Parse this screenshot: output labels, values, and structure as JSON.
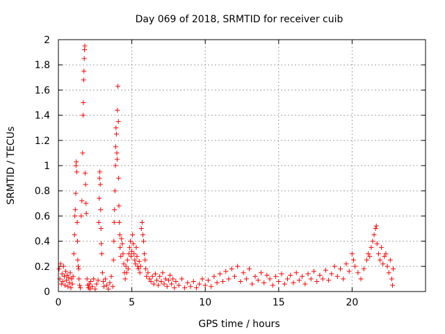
{
  "chart_data": {
    "type": "scatter",
    "title": "Day 069 of 2018, SRMTID for receiver cuib",
    "xlabel": "GPS time / hours",
    "ylabel": "SRMTID / TECUs",
    "xlim": [
      0,
      25
    ],
    "ylim": [
      0,
      2
    ],
    "grid": true,
    "marker": "plus",
    "marker_color": "#ff0000",
    "xticks": [
      0,
      5,
      10,
      15,
      20
    ],
    "xtick_labels": [
      "0",
      "5",
      "10",
      "15",
      "20"
    ],
    "yticks": [
      0,
      0.2,
      0.4,
      0.6,
      0.8,
      1,
      1.2,
      1.4,
      1.6,
      1.8,
      2
    ],
    "ytick_labels": [
      "0",
      "0.2",
      "0.4",
      "0.6",
      "0.8",
      "1",
      "1.2",
      "1.4",
      "1.6",
      "1.8",
      "2"
    ],
    "series": [
      {
        "name": "SRMTID",
        "points": [
          [
            0.05,
            0.18
          ],
          [
            0.1,
            0.1
          ],
          [
            0.15,
            0.22
          ],
          [
            0.2,
            0.06
          ],
          [
            0.25,
            0.14
          ],
          [
            0.3,
            0.08
          ],
          [
            0.35,
            0.2
          ],
          [
            0.4,
            0.12
          ],
          [
            0.45,
            0.05
          ],
          [
            0.5,
            0.16
          ],
          [
            0.55,
            0.09
          ],
          [
            0.6,
            0.13
          ],
          [
            0.65,
            0.04
          ],
          [
            0.7,
            0.11
          ],
          [
            0.75,
            0.07
          ],
          [
            0.8,
            0.15
          ],
          [
            0.85,
            0.03
          ],
          [
            0.9,
            0.1
          ],
          [
            0.95,
            0.06
          ],
          [
            1.0,
            0.12
          ],
          [
            1.05,
            0.3
          ],
          [
            1.1,
            0.45
          ],
          [
            1.12,
            0.6
          ],
          [
            1.15,
            0.65
          ],
          [
            1.18,
            0.78
          ],
          [
            1.2,
            1.0
          ],
          [
            1.22,
            1.03
          ],
          [
            1.25,
            0.95
          ],
          [
            1.28,
            0.55
          ],
          [
            1.3,
            0.4
          ],
          [
            1.32,
            0.25
          ],
          [
            1.35,
            0.2
          ],
          [
            1.38,
            0.18
          ],
          [
            1.4,
            0.1
          ],
          [
            1.45,
            0.05
          ],
          [
            1.5,
            0.03
          ],
          [
            1.55,
            0.6
          ],
          [
            1.6,
            0.72
          ],
          [
            1.65,
            1.1
          ],
          [
            1.68,
            1.4
          ],
          [
            1.7,
            1.5
          ],
          [
            1.72,
            1.68
          ],
          [
            1.74,
            1.75
          ],
          [
            1.76,
            1.85
          ],
          [
            1.78,
            1.92
          ],
          [
            1.8,
            1.95
          ],
          [
            1.82,
            0.94
          ],
          [
            1.85,
            0.85
          ],
          [
            1.88,
            0.7
          ],
          [
            1.9,
            0.62
          ],
          [
            1.95,
            0.1
          ],
          [
            2.0,
            0.05
          ],
          [
            2.05,
            0.03
          ],
          [
            2.1,
            0.06
          ],
          [
            2.15,
            0.02
          ],
          [
            2.2,
            0.08
          ],
          [
            2.3,
            0.04
          ],
          [
            2.4,
            0.1
          ],
          [
            2.5,
            0.02
          ],
          [
            2.6,
            0.06
          ],
          [
            2.7,
            0.09
          ],
          [
            2.75,
            0.55
          ],
          [
            2.78,
            0.74
          ],
          [
            2.8,
            0.9
          ],
          [
            2.82,
            0.95
          ],
          [
            2.85,
            0.85
          ],
          [
            2.88,
            0.65
          ],
          [
            2.9,
            0.5
          ],
          [
            2.92,
            0.38
          ],
          [
            2.95,
            0.3
          ],
          [
            3.0,
            0.15
          ],
          [
            3.05,
            0.08
          ],
          [
            3.1,
            0.04
          ],
          [
            3.2,
            0.1
          ],
          [
            3.3,
            0.05
          ],
          [
            3.4,
            0.02
          ],
          [
            3.5,
            0.07
          ],
          [
            3.6,
            0.12
          ],
          [
            3.7,
            0.04
          ],
          [
            3.75,
            0.25
          ],
          [
            3.78,
            0.4
          ],
          [
            3.8,
            0.55
          ],
          [
            3.82,
            0.65
          ],
          [
            3.85,
            0.8
          ],
          [
            3.88,
            1.0
          ],
          [
            3.9,
            1.15
          ],
          [
            3.92,
            1.3
          ],
          [
            3.95,
            1.25
          ],
          [
            3.98,
            1.1
          ],
          [
            4.0,
            1.05
          ],
          [
            4.02,
            1.44
          ],
          [
            4.05,
            1.63
          ],
          [
            4.08,
            1.35
          ],
          [
            4.1,
            0.9
          ],
          [
            4.12,
            0.68
          ],
          [
            4.15,
            0.55
          ],
          [
            4.18,
            0.45
          ],
          [
            4.2,
            0.35
          ],
          [
            4.25,
            0.28
          ],
          [
            4.3,
            0.42
          ],
          [
            4.35,
            0.38
          ],
          [
            4.4,
            0.3
          ],
          [
            4.45,
            0.22
          ],
          [
            4.5,
            0.15
          ],
          [
            4.55,
            0.1
          ],
          [
            4.6,
            0.2
          ],
          [
            4.65,
            0.15
          ],
          [
            4.7,
            0.25
          ],
          [
            4.75,
            0.18
          ],
          [
            4.8,
            0.3
          ],
          [
            4.85,
            0.35
          ],
          [
            4.9,
            0.4
          ],
          [
            4.95,
            0.28
          ],
          [
            5.0,
            0.32
          ],
          [
            5.05,
            0.45
          ],
          [
            5.1,
            0.38
          ],
          [
            5.15,
            0.3
          ],
          [
            5.2,
            0.25
          ],
          [
            5.25,
            0.22
          ],
          [
            5.3,
            0.35
          ],
          [
            5.35,
            0.28
          ],
          [
            5.4,
            0.2
          ],
          [
            5.45,
            0.18
          ],
          [
            5.5,
            0.24
          ],
          [
            5.55,
            0.15
          ],
          [
            5.6,
            0.2
          ],
          [
            5.65,
            0.5
          ],
          [
            5.7,
            0.55
          ],
          [
            5.75,
            0.45
          ],
          [
            5.8,
            0.4
          ],
          [
            5.85,
            0.3
          ],
          [
            5.9,
            0.25
          ],
          [
            5.95,
            0.18
          ],
          [
            6.0,
            0.12
          ],
          [
            6.1,
            0.15
          ],
          [
            6.2,
            0.1
          ],
          [
            6.3,
            0.08
          ],
          [
            6.4,
            0.12
          ],
          [
            6.5,
            0.06
          ],
          [
            6.6,
            0.14
          ],
          [
            6.7,
            0.09
          ],
          [
            6.8,
            0.05
          ],
          [
            6.9,
            0.12
          ],
          [
            7.0,
            0.08
          ],
          [
            7.1,
            0.15
          ],
          [
            7.2,
            0.06
          ],
          [
            7.3,
            0.1
          ],
          [
            7.4,
            0.04
          ],
          [
            7.5,
            0.09
          ],
          [
            7.6,
            0.13
          ],
          [
            7.7,
            0.06
          ],
          [
            7.8,
            0.1
          ],
          [
            7.9,
            0.03
          ],
          [
            8.0,
            0.08
          ],
          [
            8.2,
            0.05
          ],
          [
            8.4,
            0.1
          ],
          [
            8.6,
            0.03
          ],
          [
            8.8,
            0.07
          ],
          [
            9.0,
            0.04
          ],
          [
            9.2,
            0.08
          ],
          [
            9.4,
            0.03
          ],
          [
            9.6,
            0.06
          ],
          [
            9.8,
            0.1
          ],
          [
            10.0,
            0.05
          ],
          [
            10.2,
            0.09
          ],
          [
            10.4,
            0.04
          ],
          [
            10.6,
            0.12
          ],
          [
            10.8,
            0.07
          ],
          [
            11.0,
            0.14
          ],
          [
            11.2,
            0.08
          ],
          [
            11.4,
            0.16
          ],
          [
            11.6,
            0.1
          ],
          [
            11.8,
            0.18
          ],
          [
            12.0,
            0.12
          ],
          [
            12.2,
            0.2
          ],
          [
            12.4,
            0.08
          ],
          [
            12.6,
            0.15
          ],
          [
            12.8,
            0.1
          ],
          [
            13.0,
            0.18
          ],
          [
            13.2,
            0.06
          ],
          [
            13.4,
            0.12
          ],
          [
            13.6,
            0.09
          ],
          [
            13.8,
            0.15
          ],
          [
            14.0,
            0.07
          ],
          [
            14.2,
            0.13
          ],
          [
            14.4,
            0.1
          ],
          [
            14.6,
            0.05
          ],
          [
            14.8,
            0.12
          ],
          [
            15.0,
            0.08
          ],
          [
            15.2,
            0.14
          ],
          [
            15.4,
            0.06
          ],
          [
            15.6,
            0.1
          ],
          [
            15.8,
            0.13
          ],
          [
            16.0,
            0.07
          ],
          [
            16.2,
            0.15
          ],
          [
            16.4,
            0.09
          ],
          [
            16.6,
            0.12
          ],
          [
            16.8,
            0.06
          ],
          [
            17.0,
            0.14
          ],
          [
            17.2,
            0.1
          ],
          [
            17.4,
            0.16
          ],
          [
            17.6,
            0.08
          ],
          [
            17.8,
            0.13
          ],
          [
            18.0,
            0.1
          ],
          [
            18.2,
            0.17
          ],
          [
            18.4,
            0.09
          ],
          [
            18.6,
            0.14
          ],
          [
            18.8,
            0.2
          ],
          [
            19.0,
            0.12
          ],
          [
            19.2,
            0.18
          ],
          [
            19.4,
            0.1
          ],
          [
            19.6,
            0.22
          ],
          [
            19.8,
            0.16
          ],
          [
            20.0,
            0.3
          ],
          [
            20.1,
            0.25
          ],
          [
            20.2,
            0.2
          ],
          [
            20.4,
            0.15
          ],
          [
            20.6,
            0.1
          ],
          [
            20.8,
            0.18
          ],
          [
            21.0,
            0.25
          ],
          [
            21.1,
            0.3
          ],
          [
            21.2,
            0.28
          ],
          [
            21.3,
            0.35
          ],
          [
            21.4,
            0.4
          ],
          [
            21.5,
            0.45
          ],
          [
            21.6,
            0.5
          ],
          [
            21.65,
            0.52
          ],
          [
            21.7,
            0.38
          ],
          [
            21.8,
            0.3
          ],
          [
            21.9,
            0.25
          ],
          [
            22.0,
            0.35
          ],
          [
            22.1,
            0.22
          ],
          [
            22.2,
            0.28
          ],
          [
            22.3,
            0.3
          ],
          [
            22.4,
            0.2
          ],
          [
            22.5,
            0.15
          ],
          [
            22.6,
            0.25
          ],
          [
            22.7,
            0.1
          ],
          [
            22.75,
            0.05
          ],
          [
            22.8,
            0.18
          ]
        ]
      }
    ]
  }
}
